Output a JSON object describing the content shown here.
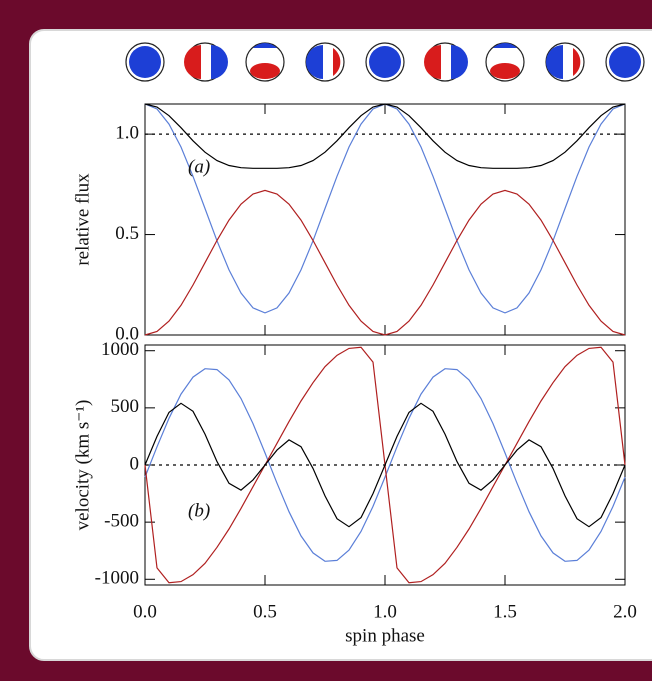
{
  "chart_data": [
    {
      "type": "line",
      "annotation": "(a)",
      "y_label": "relative flux",
      "x": [
        0,
        0.05,
        0.1,
        0.15,
        0.2,
        0.25,
        0.3,
        0.35,
        0.4,
        0.45,
        0.5,
        0.55,
        0.6,
        0.65,
        0.7,
        0.75,
        0.8,
        0.85,
        0.9,
        0.95,
        1,
        1.05,
        1.1,
        1.15,
        1.2,
        1.25,
        1.3,
        1.35,
        1.4,
        1.45,
        1.5,
        1.55,
        1.6,
        1.65,
        1.7,
        1.75,
        1.8,
        1.85,
        1.9,
        1.95,
        2
      ],
      "series": [
        {
          "color": "#5b7fd8",
          "values": [
            1.15,
            1.125,
            1.05,
            0.936,
            0.79,
            0.63,
            0.469,
            0.324,
            0.209,
            0.135,
            0.11,
            0.135,
            0.209,
            0.324,
            0.469,
            0.63,
            0.79,
            0.936,
            1.05,
            1.125,
            1.15,
            1.125,
            1.05,
            0.936,
            0.79,
            0.63,
            0.469,
            0.324,
            0.209,
            0.135,
            0.11,
            0.135,
            0.209,
            0.324,
            0.469,
            0.63,
            0.79,
            0.936,
            1.05,
            1.125,
            1.15
          ]
        },
        {
          "color": "#b02020",
          "values": [
            0,
            0.018,
            0.069,
            0.148,
            0.249,
            0.36,
            0.471,
            0.572,
            0.651,
            0.702,
            0.72,
            0.702,
            0.651,
            0.572,
            0.471,
            0.36,
            0.249,
            0.148,
            0.069,
            0.018,
            0,
            0.018,
            0.069,
            0.148,
            0.249,
            0.36,
            0.471,
            0.572,
            0.651,
            0.702,
            0.72,
            0.702,
            0.651,
            0.572,
            0.471,
            0.36,
            0.249,
            0.148,
            0.069,
            0.018,
            0
          ]
        },
        {
          "color": "#000000",
          "values": [
            1.15,
            1.135,
            1.092,
            1.032,
            0.967,
            0.91,
            0.868,
            0.844,
            0.833,
            0.83,
            0.83,
            0.83,
            0.833,
            0.844,
            0.868,
            0.91,
            0.967,
            1.032,
            1.092,
            1.135,
            1.15,
            1.135,
            1.092,
            1.032,
            0.967,
            0.91,
            0.868,
            0.844,
            0.833,
            0.83,
            0.83,
            0.83,
            0.833,
            0.844,
            0.868,
            0.91,
            0.967,
            1.032,
            1.092,
            1.135,
            1.15
          ]
        }
      ],
      "xlim": [
        0,
        2
      ],
      "xticks": [
        0,
        0.5,
        1,
        1.5,
        2
      ],
      "ylim": [
        0,
        1.15
      ],
      "yticks": [
        {
          "value": 0,
          "label": "0.0"
        },
        {
          "value": 0.5,
          "label": "0.5"
        },
        {
          "value": 1,
          "label": "1.0"
        }
      ],
      "hline": 1
    },
    {
      "type": "line",
      "annotation": "(b)",
      "y_label": "velocity (km s⁻¹)",
      "x_label": "spin phase",
      "x": [
        0,
        0.05,
        0.1,
        0.15,
        0.2,
        0.25,
        0.3,
        0.35,
        0.4,
        0.45,
        0.5,
        0.55,
        0.6,
        0.65,
        0.7,
        0.75,
        0.8,
        0.85,
        0.9,
        0.95,
        1,
        1.05,
        1.1,
        1.15,
        1.2,
        1.25,
        1.3,
        1.35,
        1.4,
        1.45,
        1.5,
        1.55,
        1.6,
        1.65,
        1.7,
        1.75,
        1.8,
        1.85,
        1.9,
        1.95,
        2
      ],
      "series": [
        {
          "color": "#5b7fd8",
          "values": [
            -106,
            159,
            409,
            620,
            769,
            843,
            835,
            745,
            582,
            362,
            106,
            -159,
            -409,
            -620,
            -769,
            -843,
            -835,
            -745,
            -582,
            -362,
            -106,
            159,
            409,
            620,
            769,
            843,
            835,
            745,
            582,
            362,
            106,
            -159,
            -409,
            -620,
            -769,
            -843,
            -835,
            -745,
            -582,
            -362,
            -106
          ]
        },
        {
          "color": "#b02020",
          "values": [
            0,
            -900,
            -1030,
            -1020,
            -960,
            -860,
            -720,
            -560,
            -380,
            -190,
            0,
            190,
            380,
            560,
            720,
            860,
            960,
            1020,
            1030,
            900,
            0,
            -900,
            -1030,
            -1020,
            -960,
            -860,
            -720,
            -560,
            -380,
            -190,
            0,
            190,
            380,
            560,
            720,
            860,
            960,
            1020,
            1030,
            900,
            0
          ]
        },
        {
          "color": "#000000",
          "values": [
            0,
            250,
            460,
            540,
            470,
            270,
            30,
            -160,
            -220,
            -130,
            0,
            130,
            220,
            160,
            -30,
            -270,
            -470,
            -540,
            -460,
            -250,
            0,
            250,
            460,
            540,
            470,
            270,
            30,
            -160,
            -220,
            -130,
            0,
            130,
            220,
            160,
            -30,
            -270,
            -470,
            -540,
            -460,
            -250,
            0
          ]
        }
      ],
      "xlim": [
        0,
        2
      ],
      "xticks": [
        {
          "value": 0,
          "label": "0.0"
        },
        {
          "value": 0.5,
          "label": "0.5"
        },
        {
          "value": 1,
          "label": "1.0"
        },
        {
          "value": 1.5,
          "label": "1.5"
        },
        {
          "value": 2,
          "label": "2.0"
        }
      ],
      "ylim": [
        -1050,
        1050
      ],
      "yticks": [
        1000,
        500,
        0,
        -500,
        -1000
      ],
      "hline": 0
    }
  ]
}
